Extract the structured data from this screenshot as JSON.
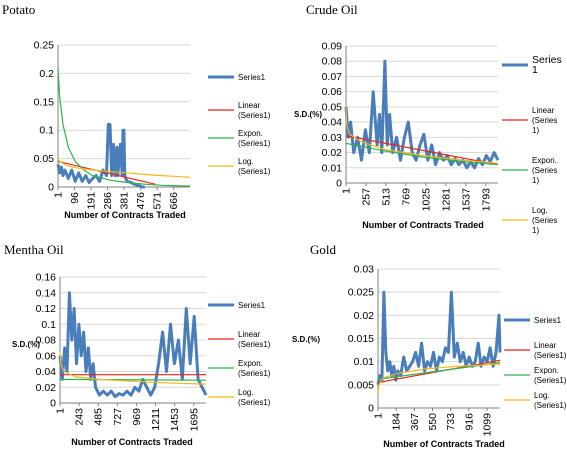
{
  "colors": {
    "series1": "#4a7ebb",
    "linear": "#e8231c",
    "expon": "#2db34a",
    "log": "#f5b71b",
    "grid": "#d9d9d9",
    "axis": "#808080"
  },
  "chart_data": [
    {
      "type": "line",
      "title": "Potato",
      "xlabel": "Number of Contracts Traded",
      "ylabel": "",
      "xlim": [
        1,
        760
      ],
      "ylim": [
        0,
        0.25
      ],
      "y_ticks": [
        "0",
        "0.05",
        "0.1",
        "0.15",
        "0.2",
        "0.25"
      ],
      "x_ticks": [
        "1",
        "96",
        "191",
        "286",
        "381",
        "476",
        "571",
        "666"
      ],
      "legend": [
        "Series1",
        "Linear\n(Series1)",
        "Expon.\n(Series1)",
        "Log.\n(Series1)"
      ],
      "legend_position": "right",
      "grid": true,
      "series": [
        {
          "name": "Series1",
          "x": [
            1,
            10,
            20,
            30,
            40,
            60,
            80,
            100,
            120,
            140,
            160,
            180,
            200,
            220,
            240,
            260,
            280,
            290,
            300,
            310,
            320,
            330,
            340,
            345,
            360,
            370,
            375,
            380,
            385,
            390,
            400,
            420,
            440,
            460,
            470,
            480,
            490,
            500
          ],
          "y": [
            0.04,
            0.025,
            0.035,
            0.02,
            0.03,
            0.015,
            0.03,
            0.01,
            0.025,
            0.01,
            0.02,
            0.008,
            0.015,
            0.02,
            0.01,
            0.03,
            0.02,
            0.11,
            0.11,
            0.02,
            0.075,
            0.02,
            0.07,
            0.02,
            0.075,
            0.02,
            0.1,
            0.1,
            0.02,
            0.015,
            0.01,
            0.008,
            0.005,
            0.003,
            0.002,
            0.001,
            0,
            0
          ]
        },
        {
          "name": "Linear (Series1)",
          "x": [
            1,
            560
          ],
          "y": [
            0.045,
            0.005
          ]
        },
        {
          "name": "Expon. (Series1)",
          "x": [
            1,
            10,
            30,
            60,
            100,
            150,
            200,
            300,
            400,
            500,
            600,
            700,
            760
          ],
          "y": [
            0.21,
            0.16,
            0.11,
            0.07,
            0.045,
            0.03,
            0.02,
            0.012,
            0.008,
            0.005,
            0.003,
            0.002,
            0.0015
          ]
        },
        {
          "name": "Log. (Series1)",
          "x": [
            1,
            10,
            50,
            100,
            200,
            300,
            400,
            500,
            600,
            760
          ],
          "y": [
            0.05,
            0.045,
            0.038,
            0.034,
            0.03,
            0.027,
            0.025,
            0.022,
            0.02,
            0.017
          ]
        }
      ]
    },
    {
      "type": "line",
      "title": "Crude Oil",
      "xlabel": "Number of Contracts Traded",
      "ylabel": "S.D.(%)",
      "xlim": [
        1,
        1950
      ],
      "ylim": [
        0,
        0.09
      ],
      "y_ticks": [
        "0",
        "0.01",
        "0.02",
        "0.03",
        "0.04",
        "0.05",
        "0.06",
        "0.07",
        "0.08",
        "0.09"
      ],
      "x_ticks": [
        "1",
        "257",
        "513",
        "769",
        "1025",
        "1281",
        "1537",
        "1793"
      ],
      "legend": [
        "Series\n1",
        "Linear\n(Series\n1)",
        "Expon.\n(Series\n1)",
        "Log.\n(Series\n1)"
      ],
      "legend_position": "right",
      "grid": true,
      "series": [
        {
          "name": "Series1",
          "x": [
            1,
            30,
            60,
            100,
            150,
            200,
            250,
            300,
            350,
            400,
            430,
            460,
            500,
            530,
            560,
            600,
            650,
            700,
            750,
            800,
            850,
            900,
            950,
            1000,
            1050,
            1100,
            1150,
            1200,
            1250,
            1300,
            1350,
            1400,
            1450,
            1500,
            1550,
            1600,
            1650,
            1700,
            1750,
            1800,
            1850,
            1900,
            1950
          ],
          "y": [
            0.05,
            0.03,
            0.04,
            0.02,
            0.03,
            0.015,
            0.035,
            0.02,
            0.06,
            0.025,
            0.045,
            0.02,
            0.08,
            0.025,
            0.045,
            0.02,
            0.03,
            0.015,
            0.03,
            0.04,
            0.02,
            0.015,
            0.025,
            0.032,
            0.015,
            0.025,
            0.012,
            0.02,
            0.015,
            0.018,
            0.012,
            0.016,
            0.012,
            0.015,
            0.01,
            0.014,
            0.01,
            0.016,
            0.012,
            0.018,
            0.014,
            0.02,
            0.015
          ]
        },
        {
          "name": "Linear (Series1)",
          "x": [
            1,
            1950
          ],
          "y": [
            0.031,
            0.012
          ]
        },
        {
          "name": "Expon. (Series1)",
          "x": [
            1,
            500,
            1000,
            1500,
            1950
          ],
          "y": [
            0.026,
            0.021,
            0.017,
            0.014,
            0.012
          ]
        },
        {
          "name": "Log. (Series1)",
          "x": [
            1,
            10,
            50,
            200,
            500,
            1000,
            1500,
            1950
          ],
          "y": [
            0.05,
            0.038,
            0.032,
            0.027,
            0.022,
            0.018,
            0.015,
            0.013
          ]
        }
      ]
    },
    {
      "type": "line",
      "title": "Mentha Oil",
      "xlabel": "Number of Contracts Traded",
      "ylabel": "S.D.(%)",
      "xlim": [
        1,
        1850
      ],
      "ylim": [
        0,
        0.16
      ],
      "y_ticks": [
        "0",
        "0.02",
        "0.04",
        "0.06",
        "0.08",
        "0.1",
        "0.12",
        "0.14",
        "0.16"
      ],
      "x_ticks": [
        "1",
        "243",
        "485",
        "727",
        "969",
        "1211",
        "1453",
        "1695"
      ],
      "legend": [
        "Series1",
        "Linear\n(Series1)",
        "Expon.\n(Series1)",
        "Log.\n(Series1)"
      ],
      "legend_position": "right",
      "grid": true,
      "series": [
        {
          "name": "Series1",
          "x": [
            1,
            30,
            60,
            90,
            120,
            150,
            180,
            210,
            240,
            270,
            300,
            330,
            360,
            390,
            420,
            450,
            500,
            550,
            600,
            650,
            700,
            750,
            800,
            850,
            900,
            950,
            1000,
            1050,
            1100,
            1150,
            1200,
            1250,
            1300,
            1350,
            1400,
            1450,
            1500,
            1550,
            1600,
            1650,
            1700,
            1750,
            1800,
            1850
          ],
          "y": [
            0.06,
            0.03,
            0.07,
            0.04,
            0.14,
            0.08,
            0.12,
            0.05,
            0.1,
            0.06,
            0.09,
            0.04,
            0.07,
            0.03,
            0.05,
            0.02,
            0.01,
            0.015,
            0.01,
            0.015,
            0.008,
            0.012,
            0.01,
            0.015,
            0.01,
            0.02,
            0.015,
            0.03,
            0.02,
            0.01,
            0.02,
            0.05,
            0.09,
            0.04,
            0.1,
            0.05,
            0.08,
            0.03,
            0.12,
            0.05,
            0.11,
            0.03,
            0.02,
            0.01
          ]
        },
        {
          "name": "Linear (Series1)",
          "x": [
            1,
            1850
          ],
          "y": [
            0.036,
            0.036
          ]
        },
        {
          "name": "Expon. (Series1)",
          "x": [
            1,
            1850
          ],
          "y": [
            0.03,
            0.029
          ]
        },
        {
          "name": "Log. (Series1)",
          "x": [
            1,
            10,
            50,
            200,
            500,
            1000,
            1500,
            1850
          ],
          "y": [
            0.065,
            0.05,
            0.04,
            0.033,
            0.03,
            0.027,
            0.025,
            0.024
          ]
        }
      ]
    },
    {
      "type": "line",
      "title": "Gold",
      "xlabel": "Number of Contracts Traded",
      "ylabel": "S.D.(%)",
      "xlim": [
        1,
        1230
      ],
      "ylim": [
        0,
        0.03
      ],
      "y_ticks": [
        "0",
        "0.005",
        "0.01",
        "0.015",
        "0.02",
        "0.025",
        "0.03"
      ],
      "x_ticks": [
        "1",
        "184",
        "367",
        "550",
        "733",
        "916",
        "1099"
      ],
      "legend": [
        "Series1",
        "Linear\n(Series1)",
        "Expon.\n(Series1)",
        "Log.\n(Series1)"
      ],
      "legend_position": "right",
      "grid": true,
      "series": [
        {
          "name": "Series1",
          "x": [
            1,
            20,
            40,
            60,
            80,
            100,
            120,
            140,
            160,
            180,
            200,
            230,
            260,
            290,
            320,
            350,
            380,
            410,
            440,
            470,
            500,
            530,
            560,
            590,
            620,
            650,
            680,
            710,
            740,
            770,
            800,
            830,
            860,
            890,
            920,
            950,
            980,
            1010,
            1040,
            1070,
            1100,
            1130,
            1160,
            1190,
            1220,
            1230
          ],
          "y": [
            0.005,
            0.007,
            0.006,
            0.025,
            0.012,
            0.008,
            0.01,
            0.007,
            0.009,
            0.006,
            0.008,
            0.007,
            0.011,
            0.008,
            0.009,
            0.01,
            0.012,
            0.009,
            0.014,
            0.008,
            0.01,
            0.009,
            0.012,
            0.008,
            0.011,
            0.01,
            0.013,
            0.012,
            0.025,
            0.011,
            0.014,
            0.01,
            0.012,
            0.009,
            0.011,
            0.009,
            0.01,
            0.014,
            0.009,
            0.011,
            0.01,
            0.013,
            0.009,
            0.012,
            0.02,
            0.012
          ]
        },
        {
          "name": "Linear (Series1)",
          "x": [
            1,
            1230
          ],
          "y": [
            0.0055,
            0.0103
          ]
        },
        {
          "name": "Expon. (Series1)",
          "x": [
            1,
            1230
          ],
          "y": [
            0.0062,
            0.0098
          ]
        },
        {
          "name": "Log. (Series1)",
          "x": [
            1,
            10,
            50,
            200,
            500,
            800,
            1230
          ],
          "y": [
            0.003,
            0.005,
            0.0065,
            0.0075,
            0.0085,
            0.009,
            0.0095
          ]
        }
      ]
    }
  ]
}
